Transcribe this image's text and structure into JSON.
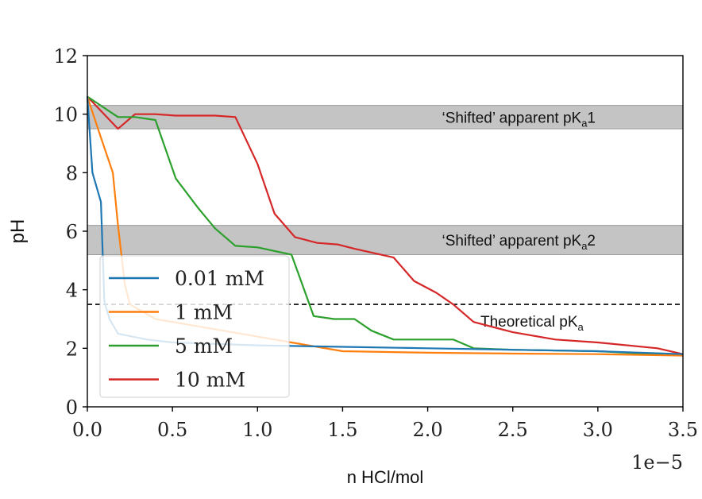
{
  "chart_data": {
    "type": "line",
    "title": "",
    "xlabel": "n HCl/mol",
    "ylabel": "pH",
    "x_offset_label": "1e−5",
    "xlim": [
      0,
      3.5
    ],
    "ylim": [
      0,
      12
    ],
    "x_ticks": [
      "0.0",
      "0.5",
      "1.0",
      "1.5",
      "2.0",
      "2.5",
      "3.0",
      "3.5"
    ],
    "y_ticks": [
      "0",
      "2",
      "4",
      "6",
      "8",
      "10",
      "12"
    ],
    "grid": false,
    "legend_position": "lower-left",
    "bands": [
      {
        "label_prefix": "‘Shifted’ apparent pK",
        "label_sub": "a",
        "label_suffix": "1",
        "y_range": [
          9.5,
          10.3
        ]
      },
      {
        "label_prefix": "‘Shifted’ apparent pK",
        "label_sub": "a",
        "label_suffix": "2",
        "y_range": [
          5.2,
          6.2
        ]
      }
    ],
    "reference_line": {
      "y": 3.5,
      "label_prefix": "Theoretical pK",
      "label_sub": "a",
      "style": "dashed"
    },
    "series": [
      {
        "name": "0.01 mM",
        "color": "#1f77b4",
        "x": [
          0.0,
          0.03,
          0.08,
          0.1,
          0.13,
          0.18,
          0.35,
          0.5,
          1.0,
          1.5,
          2.0,
          2.5,
          3.0,
          3.5
        ],
        "y": [
          10.6,
          8.0,
          7.0,
          3.6,
          3.0,
          2.5,
          2.3,
          2.2,
          2.1,
          2.05,
          2.0,
          1.95,
          1.9,
          1.8
        ]
      },
      {
        "name": "1 mM",
        "color": "#ff7f0e",
        "x": [
          0.0,
          0.08,
          0.15,
          0.18,
          0.22,
          0.25,
          0.4,
          0.8,
          1.2,
          1.5,
          2.0,
          2.5,
          3.0,
          3.5
        ],
        "y": [
          10.6,
          9.2,
          8.0,
          6.2,
          4.2,
          3.5,
          3.0,
          2.6,
          2.2,
          1.9,
          1.85,
          1.82,
          1.8,
          1.75
        ]
      },
      {
        "name": "5 mM",
        "color": "#2ca02c",
        "x": [
          0.0,
          0.18,
          0.28,
          0.4,
          0.52,
          0.65,
          0.75,
          0.87,
          1.0,
          1.2,
          1.33,
          1.45,
          1.57,
          1.67,
          1.8,
          2.0,
          2.15,
          2.27,
          2.5,
          3.0,
          3.5
        ],
        "y": [
          10.6,
          9.9,
          9.9,
          9.8,
          7.8,
          6.8,
          6.1,
          5.5,
          5.45,
          5.2,
          3.1,
          3.0,
          3.0,
          2.6,
          2.3,
          2.3,
          2.3,
          2.0,
          1.95,
          1.9,
          1.75
        ]
      },
      {
        "name": "10 mM",
        "color": "#d62728",
        "x": [
          0.0,
          0.18,
          0.28,
          0.4,
          0.52,
          0.75,
          0.87,
          1.0,
          1.1,
          1.22,
          1.35,
          1.47,
          1.57,
          1.8,
          1.92,
          2.05,
          2.15,
          2.27,
          2.5,
          2.75,
          3.0,
          3.35,
          3.5
        ],
        "y": [
          10.6,
          9.5,
          10.0,
          10.0,
          9.95,
          9.95,
          9.9,
          8.3,
          6.6,
          5.8,
          5.6,
          5.55,
          5.4,
          5.1,
          4.3,
          3.9,
          3.5,
          2.9,
          2.55,
          2.3,
          2.2,
          2.0,
          1.8
        ]
      }
    ]
  }
}
